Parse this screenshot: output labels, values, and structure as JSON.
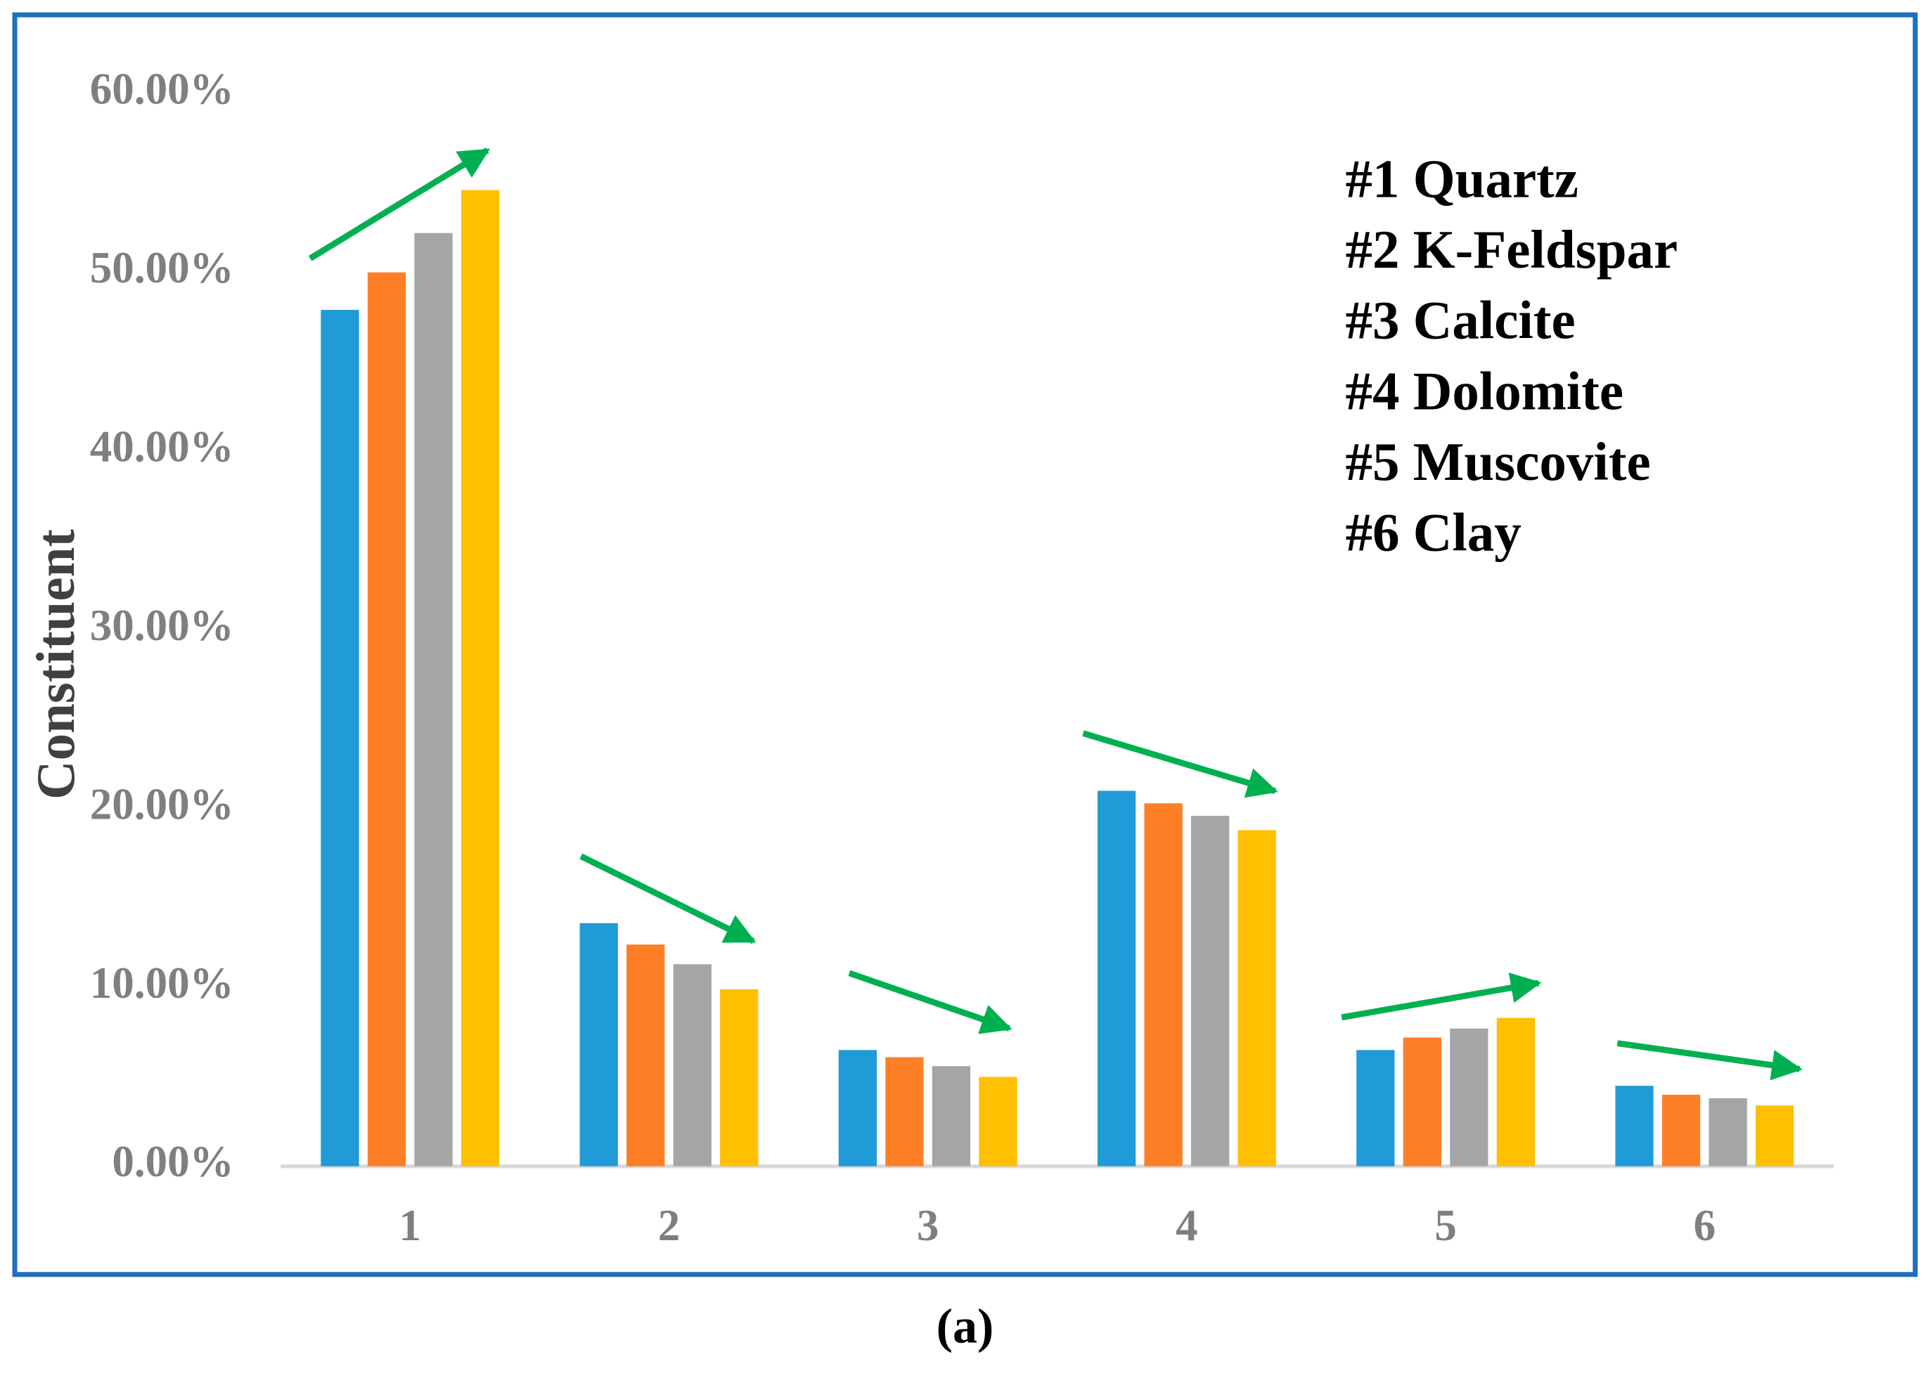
{
  "chart_data": {
    "type": "bar",
    "y_label": "Constituent",
    "caption": "(a)",
    "annotations": [
      "#1 Quartz",
      "#2 K-Feldspar",
      "#3 Calcite",
      "#4 Dolomite",
      "#5 Muscovite",
      "#6 Clay"
    ],
    "categories": [
      "1",
      "2",
      "3",
      "4",
      "5",
      "6"
    ],
    "series": [
      {
        "color": "#1f9bd7",
        "values": [
          47.9,
          13.6,
          6.5,
          21.0,
          6.5,
          4.5
        ]
      },
      {
        "color": "#ff7f27",
        "values": [
          50.0,
          12.4,
          6.1,
          20.3,
          7.2,
          4.0
        ]
      },
      {
        "color": "#a5a5a5",
        "values": [
          52.2,
          11.3,
          5.6,
          19.6,
          7.7,
          3.8
        ]
      },
      {
        "color": "#ffc000",
        "values": [
          54.6,
          9.9,
          5.0,
          18.8,
          8.3,
          3.4
        ]
      }
    ],
    "ylim": [
      0,
      60
    ],
    "yticks": [
      {
        "value": 0,
        "label": "0.00%"
      },
      {
        "value": 10,
        "label": "10.00%"
      },
      {
        "value": 20,
        "label": "20.00%"
      },
      {
        "value": 30,
        "label": "30.00%"
      },
      {
        "value": 40,
        "label": "40.00%"
      },
      {
        "value": 50,
        "label": "50.00%"
      },
      {
        "value": 60,
        "label": "60.00%"
      }
    ],
    "grid": false
  }
}
